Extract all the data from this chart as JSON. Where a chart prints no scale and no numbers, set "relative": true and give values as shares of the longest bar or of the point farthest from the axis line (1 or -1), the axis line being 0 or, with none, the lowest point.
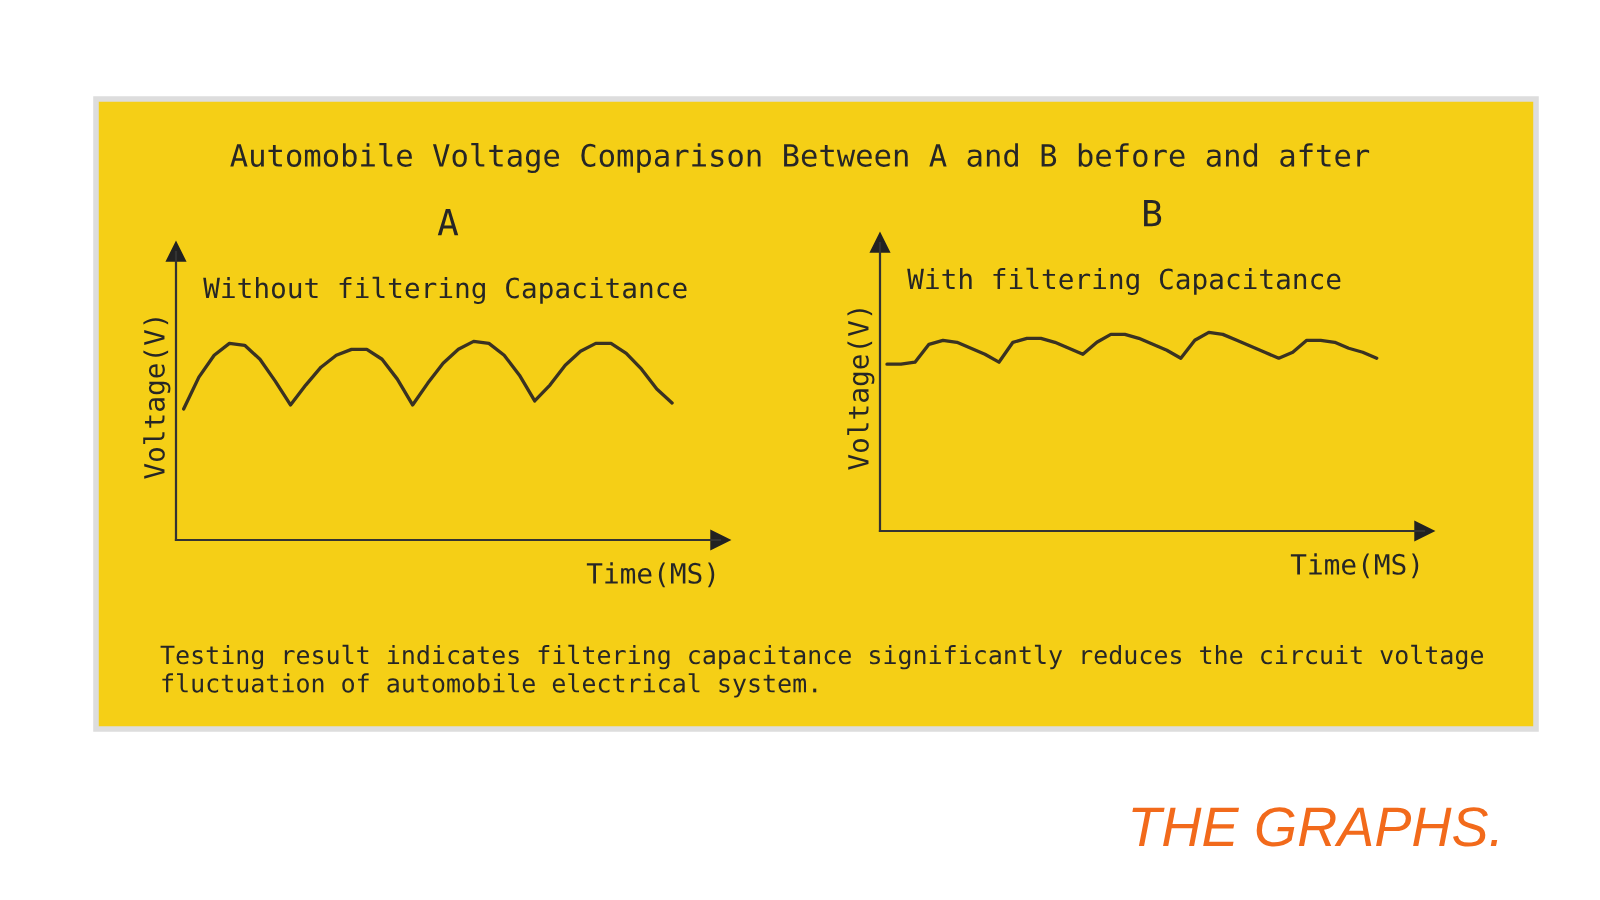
{
  "chart_data": [
    {
      "type": "line",
      "title": "A",
      "subtitle": "Without filtering Capacitance",
      "xlabel": "Time(MS)",
      "ylabel": "Voltage(V)",
      "relative": true,
      "legend": false,
      "tick_labels": false,
      "categories": [
        null,
        null,
        null,
        null,
        null,
        null,
        null,
        null,
        null,
        null,
        null,
        null,
        null,
        null,
        null,
        null,
        null,
        null,
        null,
        null,
        null,
        null,
        null,
        null,
        null,
        null,
        null,
        null,
        null,
        null,
        null,
        null,
        null
      ],
      "series": [
        {
          "color": "#3a3222",
          "values": [
            0.66,
            0.82,
            0.93,
            0.99,
            0.98,
            0.91,
            0.8,
            0.68,
            0.78,
            0.87,
            0.93,
            0.96,
            0.96,
            0.91,
            0.81,
            0.68,
            0.79,
            0.89,
            0.96,
            1.0,
            0.99,
            0.93,
            0.83,
            0.7,
            0.78,
            0.88,
            0.95,
            0.99,
            0.99,
            0.94,
            0.86,
            0.76,
            0.69
          ]
        }
      ],
      "annotations": [
        "Automobile Voltage Comparison Between A and B before and after",
        "Testing result indicates filtering capacitance significantly reduces the circuit voltage fluctuation of automobile electrical system."
      ]
    },
    {
      "type": "line",
      "title": "B",
      "subtitle": "With filtering Capacitance",
      "xlabel": "Time(MS)",
      "ylabel": "Voltage(V)",
      "relative": true,
      "legend": false,
      "tick_labels": false,
      "categories": [
        null,
        null,
        null,
        null,
        null,
        null,
        null,
        null,
        null,
        null,
        null,
        null,
        null,
        null,
        null,
        null,
        null,
        null,
        null,
        null,
        null,
        null,
        null,
        null,
        null,
        null,
        null,
        null,
        null,
        null,
        null,
        null,
        null,
        null,
        null,
        null
      ],
      "series": [
        {
          "color": "#3a3222",
          "values": [
            0.84,
            0.84,
            0.85,
            0.94,
            0.96,
            0.95,
            0.92,
            0.89,
            0.85,
            0.95,
            0.97,
            0.97,
            0.95,
            0.92,
            0.89,
            0.95,
            0.99,
            0.99,
            0.97,
            0.94,
            0.91,
            0.87,
            0.96,
            1.0,
            0.99,
            0.96,
            0.93,
            0.9,
            0.87,
            0.9,
            0.96,
            0.96,
            0.95,
            0.92,
            0.9,
            0.87
          ]
        }
      ],
      "annotations": [
        "THE GRAPHS."
      ]
    }
  ]
}
